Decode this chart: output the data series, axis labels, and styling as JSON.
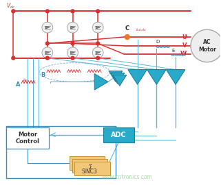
{
  "bg": "#ffffff",
  "rc": "#d93030",
  "bc": "#5ab8d5",
  "bc2": "#3a8fc0",
  "tc": "#29aac8",
  "te": "#1a7a98",
  "orange": "#f07820",
  "gray_circle_fc": "#f0f0f0",
  "gray_circle_ec": "#999999",
  "motor_fc": "#eeeeee",
  "motor_ec": "#aaaaaa",
  "mc_fc": "#ffffff",
  "mc_ec": "#4488bb",
  "adc_fc": "#29aac8",
  "adc_ec": "#1a7a98",
  "sinc_fc": "#f0c878",
  "sinc_ec": "#c89030",
  "wm_color": "#88cc88",
  "wm_text": "www.cntronics.com",
  "lbl_vdc": "V",
  "lbl_vdc_sub": "dc",
  "lbl_A": "A",
  "lbl_B": "B",
  "lbl_C": "C",
  "lbl_D": "D",
  "lbl_E": "E",
  "lbl_U": "U",
  "lbl_V": "V",
  "lbl_W": "W",
  "lbl_idc": "i",
  "lbl_idc_sub": "dc",
  "lbl_iuvw": "i  i  i",
  "lbl_iuvw_sub": "u  v  w",
  "lbl_motor": "AC\nMotor",
  "lbl_mc": "Motor\nControl",
  "lbl_adc": "ADC",
  "lbl_sinc1": "Σ",
  "lbl_sinc2": "SINC3",
  "red_dot_r": 2.5,
  "orange_dot_r": 3.5
}
